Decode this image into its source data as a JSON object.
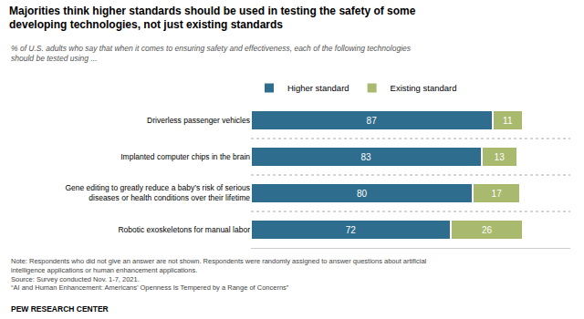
{
  "chart_data": {
    "type": "bar",
    "orientation": "horizontal",
    "stacked": true,
    "title": "Majorities think higher standards should be used in testing the safety of some\ndeveloping technologies, not just existing standards",
    "subtitle": "% of U.S. adults who say that when it comes to ensuring safety and effectiveness, each of the following technologies\nshould be tested using ...",
    "categories": [
      "Driverless passenger vehicles",
      "Implanted computer chips in the brain",
      "Gene editing to greatly reduce a baby’s risk of serious\ndiseases or health conditions over their lifetime",
      "Robotic exoskeletons for manual labor"
    ],
    "series": [
      {
        "name": "Higher standard",
        "color": "#2e6d8e",
        "values": [
          87,
          83,
          80,
          72
        ]
      },
      {
        "name": "Existing standard",
        "color": "#a9b96e",
        "values": [
          11,
          13,
          17,
          26
        ]
      }
    ],
    "xlim": [
      0,
      115
    ],
    "data_labels": true,
    "tick_labels": "y",
    "grid": false,
    "legend": "top",
    "notes": [
      "Note: Respondents who did not give an answer are not shown. Respondents were randomly assigned to answer questions about artificial",
      "intelligence applications or human enhancement applications.",
      "Source: Survey conducted Nov. 1-7, 2021.",
      "“AI and Human Enhancement: Americans’ Openness Is Tempered by a Range of Concerns”"
    ],
    "footer": "PEW RESEARCH CENTER"
  }
}
